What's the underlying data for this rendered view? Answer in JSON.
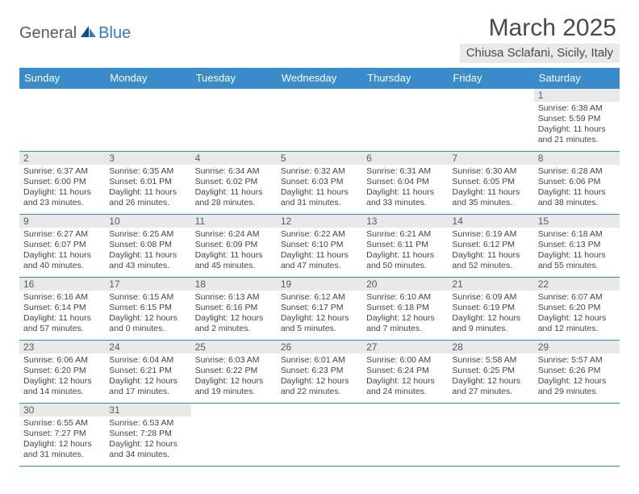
{
  "logo": {
    "dark": "General",
    "blue": "Blue"
  },
  "title": "March 2025",
  "location": "Chiusa Sclafani, Sicily, Italy",
  "colors": {
    "header_bg": "#3a8bc9",
    "header_fg": "#ffffff",
    "border": "#3a8bc9",
    "daybar_bg": "#e9e9e9",
    "location_bg": "#e9e9e9",
    "text": "#444444",
    "title_color": "#4a4a4a",
    "logo_dark": "#5a5a5a",
    "logo_blue": "#2f7fc2"
  },
  "typography": {
    "title_fontsize": 30,
    "logo_fontsize": 20,
    "location_fontsize": 15,
    "weekday_fontsize": 13,
    "daynum_fontsize": 12,
    "info_fontsize": 10.5
  },
  "weekdays": [
    "Sunday",
    "Monday",
    "Tuesday",
    "Wednesday",
    "Thursday",
    "Friday",
    "Saturday"
  ],
  "weeks": [
    [
      null,
      null,
      null,
      null,
      null,
      null,
      {
        "n": "1",
        "sr": "Sunrise: 6:38 AM",
        "ss": "Sunset: 5:59 PM",
        "dl": "Daylight: 11 hours and 21 minutes."
      }
    ],
    [
      {
        "n": "2",
        "sr": "Sunrise: 6:37 AM",
        "ss": "Sunset: 6:00 PM",
        "dl": "Daylight: 11 hours and 23 minutes."
      },
      {
        "n": "3",
        "sr": "Sunrise: 6:35 AM",
        "ss": "Sunset: 6:01 PM",
        "dl": "Daylight: 11 hours and 26 minutes."
      },
      {
        "n": "4",
        "sr": "Sunrise: 6:34 AM",
        "ss": "Sunset: 6:02 PM",
        "dl": "Daylight: 11 hours and 28 minutes."
      },
      {
        "n": "5",
        "sr": "Sunrise: 6:32 AM",
        "ss": "Sunset: 6:03 PM",
        "dl": "Daylight: 11 hours and 31 minutes."
      },
      {
        "n": "6",
        "sr": "Sunrise: 6:31 AM",
        "ss": "Sunset: 6:04 PM",
        "dl": "Daylight: 11 hours and 33 minutes."
      },
      {
        "n": "7",
        "sr": "Sunrise: 6:30 AM",
        "ss": "Sunset: 6:05 PM",
        "dl": "Daylight: 11 hours and 35 minutes."
      },
      {
        "n": "8",
        "sr": "Sunrise: 6:28 AM",
        "ss": "Sunset: 6:06 PM",
        "dl": "Daylight: 11 hours and 38 minutes."
      }
    ],
    [
      {
        "n": "9",
        "sr": "Sunrise: 6:27 AM",
        "ss": "Sunset: 6:07 PM",
        "dl": "Daylight: 11 hours and 40 minutes."
      },
      {
        "n": "10",
        "sr": "Sunrise: 6:25 AM",
        "ss": "Sunset: 6:08 PM",
        "dl": "Daylight: 11 hours and 43 minutes."
      },
      {
        "n": "11",
        "sr": "Sunrise: 6:24 AM",
        "ss": "Sunset: 6:09 PM",
        "dl": "Daylight: 11 hours and 45 minutes."
      },
      {
        "n": "12",
        "sr": "Sunrise: 6:22 AM",
        "ss": "Sunset: 6:10 PM",
        "dl": "Daylight: 11 hours and 47 minutes."
      },
      {
        "n": "13",
        "sr": "Sunrise: 6:21 AM",
        "ss": "Sunset: 6:11 PM",
        "dl": "Daylight: 11 hours and 50 minutes."
      },
      {
        "n": "14",
        "sr": "Sunrise: 6:19 AM",
        "ss": "Sunset: 6:12 PM",
        "dl": "Daylight: 11 hours and 52 minutes."
      },
      {
        "n": "15",
        "sr": "Sunrise: 6:18 AM",
        "ss": "Sunset: 6:13 PM",
        "dl": "Daylight: 11 hours and 55 minutes."
      }
    ],
    [
      {
        "n": "16",
        "sr": "Sunrise: 6:16 AM",
        "ss": "Sunset: 6:14 PM",
        "dl": "Daylight: 11 hours and 57 minutes."
      },
      {
        "n": "17",
        "sr": "Sunrise: 6:15 AM",
        "ss": "Sunset: 6:15 PM",
        "dl": "Daylight: 12 hours and 0 minutes."
      },
      {
        "n": "18",
        "sr": "Sunrise: 6:13 AM",
        "ss": "Sunset: 6:16 PM",
        "dl": "Daylight: 12 hours and 2 minutes."
      },
      {
        "n": "19",
        "sr": "Sunrise: 6:12 AM",
        "ss": "Sunset: 6:17 PM",
        "dl": "Daylight: 12 hours and 5 minutes."
      },
      {
        "n": "20",
        "sr": "Sunrise: 6:10 AM",
        "ss": "Sunset: 6:18 PM",
        "dl": "Daylight: 12 hours and 7 minutes."
      },
      {
        "n": "21",
        "sr": "Sunrise: 6:09 AM",
        "ss": "Sunset: 6:19 PM",
        "dl": "Daylight: 12 hours and 9 minutes."
      },
      {
        "n": "22",
        "sr": "Sunrise: 6:07 AM",
        "ss": "Sunset: 6:20 PM",
        "dl": "Daylight: 12 hours and 12 minutes."
      }
    ],
    [
      {
        "n": "23",
        "sr": "Sunrise: 6:06 AM",
        "ss": "Sunset: 6:20 PM",
        "dl": "Daylight: 12 hours and 14 minutes."
      },
      {
        "n": "24",
        "sr": "Sunrise: 6:04 AM",
        "ss": "Sunset: 6:21 PM",
        "dl": "Daylight: 12 hours and 17 minutes."
      },
      {
        "n": "25",
        "sr": "Sunrise: 6:03 AM",
        "ss": "Sunset: 6:22 PM",
        "dl": "Daylight: 12 hours and 19 minutes."
      },
      {
        "n": "26",
        "sr": "Sunrise: 6:01 AM",
        "ss": "Sunset: 6:23 PM",
        "dl": "Daylight: 12 hours and 22 minutes."
      },
      {
        "n": "27",
        "sr": "Sunrise: 6:00 AM",
        "ss": "Sunset: 6:24 PM",
        "dl": "Daylight: 12 hours and 24 minutes."
      },
      {
        "n": "28",
        "sr": "Sunrise: 5:58 AM",
        "ss": "Sunset: 6:25 PM",
        "dl": "Daylight: 12 hours and 27 minutes."
      },
      {
        "n": "29",
        "sr": "Sunrise: 5:57 AM",
        "ss": "Sunset: 6:26 PM",
        "dl": "Daylight: 12 hours and 29 minutes."
      }
    ],
    [
      {
        "n": "30",
        "sr": "Sunrise: 6:55 AM",
        "ss": "Sunset: 7:27 PM",
        "dl": "Daylight: 12 hours and 31 minutes."
      },
      {
        "n": "31",
        "sr": "Sunrise: 6:53 AM",
        "ss": "Sunset: 7:28 PM",
        "dl": "Daylight: 12 hours and 34 minutes."
      },
      null,
      null,
      null,
      null,
      null
    ]
  ]
}
